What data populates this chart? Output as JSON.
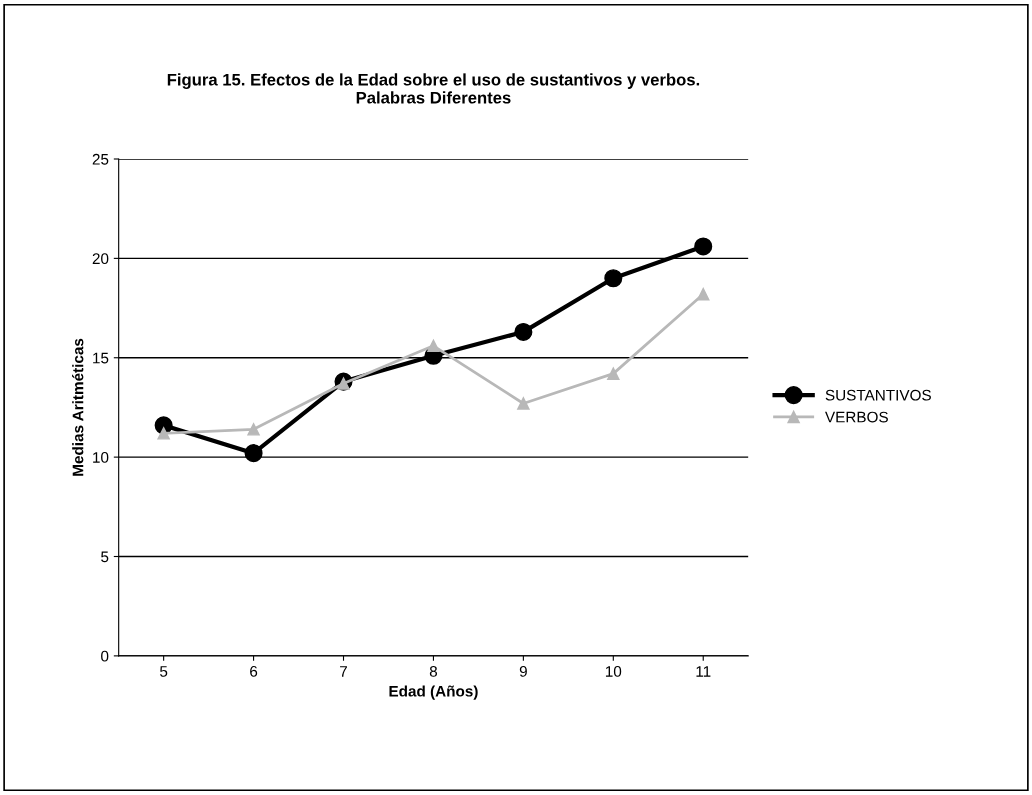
{
  "chart_data": {
    "type": "line",
    "title": "Figura 15. Efectos de la Edad sobre el uso de sustantivos y verbos.\nPalabras Diferentes",
    "xlabel": "Edad (Años)",
    "ylabel": "Medias Aritméticas",
    "categories": [
      "5",
      "6",
      "7",
      "8",
      "9",
      "10",
      "11"
    ],
    "series": [
      {
        "name": "SUSTANTIVOS",
        "color": "#000000",
        "marker": "circle",
        "values": [
          11.6,
          10.2,
          13.8,
          15.1,
          16.3,
          19.0,
          20.6
        ]
      },
      {
        "name": "VERBOS",
        "color": "#b8b8b8",
        "marker": "triangle",
        "values": [
          11.2,
          11.4,
          13.7,
          15.6,
          12.7,
          14.2,
          18.2
        ]
      }
    ],
    "ylim": [
      0,
      25
    ],
    "yticks": [
      0,
      5,
      10,
      15,
      20,
      25
    ],
    "grid": "y",
    "legend": "right"
  }
}
